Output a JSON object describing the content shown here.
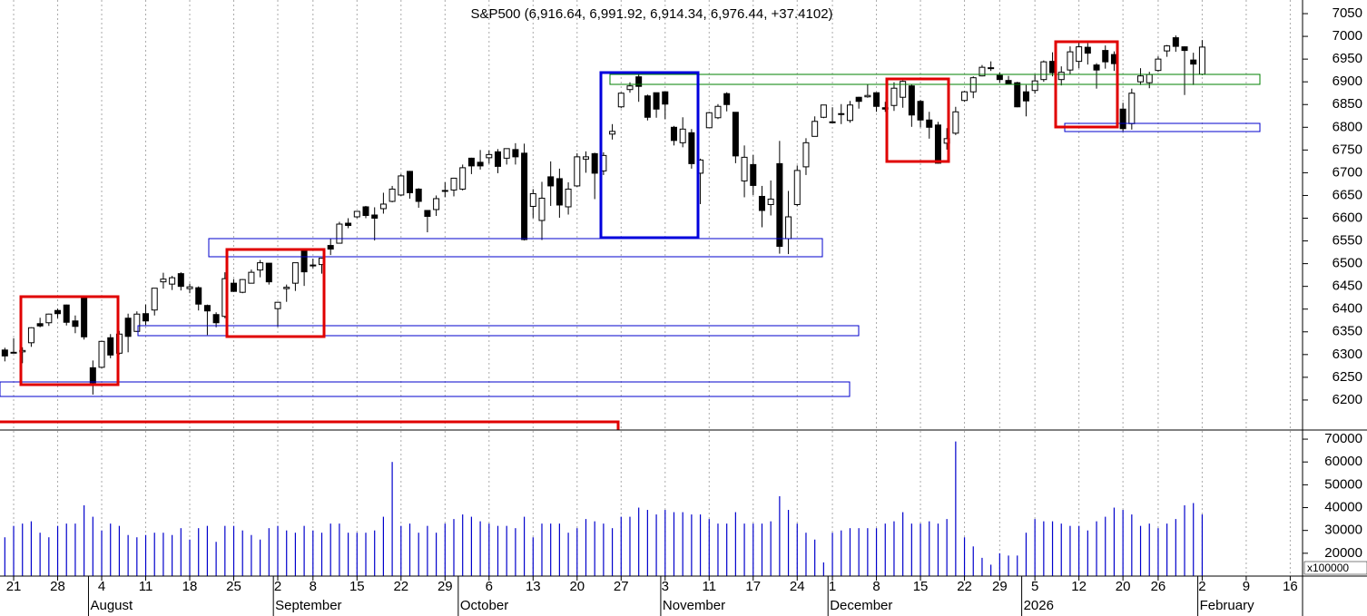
{
  "chart_data": {
    "type": "candlestick",
    "title": "S&P500 (6,916.64, 6,991.92, 6,914.34, 6,976.44, +37.4102)",
    "volume_unit_label": "x100000",
    "xlim": [
      -0.55,
      147.4
    ],
    "xticks": [
      {
        "value": 1,
        "label": "21"
      },
      {
        "value": 6,
        "label": "28"
      },
      {
        "value": 11,
        "label": "4"
      },
      {
        "value": 16,
        "label": "11"
      },
      {
        "value": 21,
        "label": "18"
      },
      {
        "value": 26,
        "label": "25"
      },
      {
        "value": 31,
        "label": "2"
      },
      {
        "value": 35,
        "label": "8"
      },
      {
        "value": 40,
        "label": "15"
      },
      {
        "value": 45,
        "label": "22"
      },
      {
        "value": 50,
        "label": "29"
      },
      {
        "value": 55,
        "label": "6"
      },
      {
        "value": 60,
        "label": "13"
      },
      {
        "value": 65,
        "label": "20"
      },
      {
        "value": 70,
        "label": "27"
      },
      {
        "value": 75,
        "label": "3"
      },
      {
        "value": 80,
        "label": "11"
      },
      {
        "value": 85,
        "label": "17"
      },
      {
        "value": 90,
        "label": "24"
      },
      {
        "value": 94,
        "label": "1"
      },
      {
        "value": 99,
        "label": "8"
      },
      {
        "value": 104,
        "label": "15"
      },
      {
        "value": 109,
        "label": "22"
      },
      {
        "value": 113,
        "label": "29"
      },
      {
        "value": 117,
        "label": "5"
      },
      {
        "value": 122,
        "label": "12"
      },
      {
        "value": 127,
        "label": "20"
      },
      {
        "value": 131,
        "label": "26"
      },
      {
        "value": 136,
        "label": "2"
      },
      {
        "value": 141,
        "label": "9"
      },
      {
        "value": 146,
        "label": "16"
      }
    ],
    "months": [
      {
        "value": 10,
        "label": "August"
      },
      {
        "value": 31,
        "label": "September"
      },
      {
        "value": 52,
        "label": "October"
      },
      {
        "value": 75,
        "label": "November"
      },
      {
        "value": 94,
        "label": "December"
      },
      {
        "value": 116,
        "label": "2026"
      },
      {
        "value": 136,
        "label": "February"
      }
    ],
    "ylim": [
      6134,
      7080
    ],
    "yticks": [
      6200,
      6250,
      6300,
      6350,
      6400,
      6450,
      6500,
      6550,
      6600,
      6650,
      6700,
      6750,
      6800,
      6850,
      6900,
      6950,
      7000,
      7050
    ],
    "y2lim": [
      10000,
      73600
    ],
    "y2ticks": [
      20000,
      30000,
      40000,
      50000,
      60000,
      70000
    ],
    "up_color": "#ffffff",
    "down_color": "#000000",
    "volume_color": "#0000cc",
    "ohlc": [
      [
        6310,
        6315,
        6285,
        6297
      ],
      [
        6305,
        6336,
        6303,
        6305
      ],
      [
        6306,
        6316,
        6281,
        6309
      ],
      [
        6326,
        6360,
        6317,
        6359
      ],
      [
        6368,
        6381,
        6360,
        6363
      ],
      [
        6370,
        6390,
        6363,
        6389
      ],
      [
        6397,
        6401,
        6380,
        6390
      ],
      [
        6409,
        6410,
        6364,
        6371
      ],
      [
        6374,
        6386,
        6347,
        6362
      ],
      [
        6428,
        6428,
        6333,
        6339
      ],
      [
        6271,
        6287,
        6212,
        6238
      ],
      [
        6272,
        6330,
        6270,
        6329
      ],
      [
        6337,
        6345,
        6292,
        6299
      ],
      [
        6303,
        6352,
        6300,
        6345
      ],
      [
        6380,
        6390,
        6305,
        6340
      ],
      [
        6351,
        6395,
        6350,
        6389
      ],
      [
        6390,
        6410,
        6365,
        6374
      ],
      [
        6398,
        6446,
        6386,
        6446
      ],
      [
        6460,
        6480,
        6445,
        6466
      ],
      [
        6455,
        6473,
        6442,
        6469
      ],
      [
        6478,
        6481,
        6441,
        6450
      ],
      [
        6445,
        6456,
        6435,
        6449
      ],
      [
        6447,
        6450,
        6397,
        6411
      ],
      [
        6408,
        6410,
        6343,
        6396
      ],
      [
        6388,
        6393,
        6360,
        6370
      ],
      [
        6384,
        6481,
        6380,
        6467
      ],
      [
        6457,
        6466,
        6438,
        6439
      ],
      [
        6437,
        6466,
        6435,
        6465
      ],
      [
        6457,
        6487,
        6457,
        6481
      ],
      [
        6486,
        6508,
        6470,
        6502
      ],
      [
        6501,
        6501,
        6454,
        6460
      ],
      [
        6401,
        6416,
        6361,
        6415
      ],
      [
        6445,
        6454,
        6416,
        6448
      ],
      [
        6457,
        6502,
        6440,
        6502
      ],
      [
        6531,
        6533,
        6451,
        6482
      ],
      [
        6497,
        6511,
        6490,
        6495
      ],
      [
        6498,
        6513,
        6478,
        6512
      ],
      [
        6540,
        6555,
        6519,
        6532
      ],
      [
        6545,
        6592,
        6545,
        6587
      ],
      [
        6589,
        6600,
        6578,
        6584
      ],
      [
        6603,
        6616,
        6600,
        6615
      ],
      [
        6625,
        6627,
        6600,
        6606
      ],
      [
        6607,
        6624,
        6551,
        6600
      ],
      [
        6621,
        6656,
        6610,
        6631
      ],
      [
        6637,
        6671,
        6635,
        6664
      ],
      [
        6651,
        6697,
        6649,
        6693
      ],
      [
        6703,
        6704,
        6643,
        6656
      ],
      [
        6664,
        6666,
        6623,
        6637
      ],
      [
        6617,
        6618,
        6569,
        6604
      ],
      [
        6619,
        6650,
        6605,
        6643
      ],
      [
        6661,
        6679,
        6646,
        6661
      ],
      [
        6662,
        6689,
        6648,
        6688
      ],
      [
        6664,
        6718,
        6661,
        6711
      ],
      [
        6732,
        6733,
        6697,
        6715
      ],
      [
        6723,
        6750,
        6707,
        6715
      ],
      [
        6733,
        6749,
        6720,
        6740
      ],
      [
        6746,
        6752,
        6699,
        6714
      ],
      [
        6732,
        6753,
        6718,
        6753
      ],
      [
        6751,
        6765,
        6718,
        6735
      ],
      [
        6743,
        6764,
        6551,
        6553
      ],
      [
        6626,
        6664,
        6600,
        6654
      ],
      [
        6595,
        6680,
        6552,
        6644
      ],
      [
        6691,
        6725,
        6627,
        6671
      ],
      [
        6687,
        6709,
        6601,
        6629
      ],
      [
        6625,
        6679,
        6608,
        6664
      ],
      [
        6671,
        6743,
        6669,
        6735
      ],
      [
        6730,
        6747,
        6700,
        6735
      ],
      [
        6742,
        6744,
        6642,
        6699
      ],
      [
        6704,
        6745,
        6695,
        6738
      ],
      [
        6785,
        6807,
        6773,
        6791
      ],
      [
        6845,
        6877,
        6842,
        6875
      ],
      [
        6883,
        6899,
        6876,
        6891
      ],
      [
        6911,
        6920,
        6856,
        6890
      ],
      [
        6869,
        6872,
        6815,
        6822
      ],
      [
        6876,
        6876,
        6821,
        6840
      ],
      [
        6878,
        6878,
        6818,
        6851
      ],
      [
        6800,
        6803,
        6760,
        6771
      ],
      [
        6766,
        6822,
        6756,
        6796
      ],
      [
        6788,
        6796,
        6709,
        6720
      ],
      [
        6699,
        6731,
        6631,
        6728
      ],
      [
        6799,
        6834,
        6799,
        6832
      ],
      [
        6821,
        6851,
        6818,
        6846
      ],
      [
        6874,
        6877,
        6835,
        6850
      ],
      [
        6833,
        6833,
        6721,
        6737
      ],
      [
        6682,
        6760,
        6646,
        6734
      ],
      [
        6718,
        6739,
        6651,
        6672
      ],
      [
        6648,
        6671,
        6580,
        6617
      ],
      [
        6630,
        6683,
        6606,
        6642
      ],
      [
        6720,
        6770,
        6522,
        6538
      ],
      [
        6555,
        6660,
        6521,
        6603
      ],
      [
        6630,
        6716,
        6626,
        6705
      ],
      [
        6713,
        6776,
        6695,
        6766
      ],
      [
        6780,
        6824,
        6780,
        6813
      ],
      [
        6822,
        6849,
        6820,
        6849
      ],
      [
        6812,
        6844,
        6810,
        6812
      ],
      [
        6830,
        6851,
        6807,
        6829
      ],
      [
        6815,
        6858,
        6810,
        6849
      ],
      [
        6866,
        6867,
        6841,
        6857
      ],
      [
        6867,
        6895,
        6865,
        6870
      ],
      [
        6876,
        6877,
        6834,
        6846
      ],
      [
        6843,
        6856,
        6834,
        6840
      ],
      [
        6848,
        6899,
        6836,
        6886
      ],
      [
        6866,
        6903,
        6843,
        6901
      ],
      [
        6891,
        6894,
        6801,
        6827
      ],
      [
        6857,
        6860,
        6800,
        6816
      ],
      [
        6816,
        6834,
        6775,
        6800
      ],
      [
        6805,
        6812,
        6720,
        6721
      ],
      [
        6765,
        6798,
        6751,
        6775
      ],
      [
        6787,
        6845,
        6783,
        6834
      ],
      [
        6859,
        6880,
        6856,
        6878
      ],
      [
        6878,
        6912,
        6864,
        6909
      ],
      [
        6913,
        6937,
        6912,
        6932
      ],
      [
        6931,
        6945,
        6924,
        6930
      ],
      [
        6914,
        6921,
        6898,
        6905
      ],
      [
        6903,
        6913,
        6897,
        6896
      ],
      [
        6898,
        6900,
        6844,
        6845
      ],
      [
        6878,
        6893,
        6824,
        6858
      ],
      [
        6881,
        6916,
        6874,
        6902
      ],
      [
        6905,
        6947,
        6900,
        6944
      ],
      [
        6945,
        6965,
        6912,
        6920
      ],
      [
        6905,
        6934,
        6892,
        6921
      ],
      [
        6926,
        6978,
        6916,
        6966
      ],
      [
        6945,
        6986,
        6930,
        6977
      ],
      [
        6976,
        6985,
        6938,
        6963
      ],
      [
        6937,
        6941,
        6885,
        6926
      ],
      [
        6969,
        6980,
        6929,
        6944
      ],
      [
        6960,
        6967,
        6924,
        6940
      ],
      [
        6840,
        6854,
        6790,
        6797
      ],
      [
        6808,
        6885,
        6795,
        6875
      ],
      [
        6900,
        6930,
        6893,
        6913
      ],
      [
        6898,
        6922,
        6886,
        6916
      ],
      [
        6925,
        6956,
        6922,
        6950
      ],
      [
        6968,
        6981,
        6955,
        6979
      ],
      [
        6997,
        7002,
        6966,
        6978
      ],
      [
        6977,
        6978,
        6871,
        6969
      ],
      [
        6948,
        6964,
        6893,
        6939
      ],
      [
        6916.64,
        6991.92,
        6914.34,
        6976.44
      ]
    ],
    "volume": [
      27000,
      32000,
      33000,
      34000,
      29000,
      27000,
      32000,
      33000,
      33000,
      41000,
      36000,
      30000,
      33000,
      32000,
      28000,
      27000,
      28000,
      29000,
      29000,
      28000,
      31000,
      26000,
      31000,
      32000,
      25000,
      32000,
      32000,
      30000,
      28000,
      26000,
      31000,
      32000,
      30000,
      29000,
      32000,
      30000,
      29000,
      33000,
      33000,
      29000,
      29000,
      29000,
      30000,
      36000,
      60000,
      32000,
      33000,
      29000,
      32000,
      29000,
      33000,
      35000,
      37000,
      36000,
      34000,
      33000,
      32000,
      32000,
      31000,
      36000,
      27000,
      33000,
      33000,
      33000,
      29000,
      31000,
      35000,
      34000,
      33000,
      31000,
      36000,
      36000,
      40000,
      39000,
      37000,
      39000,
      38000,
      38000,
      37000,
      37000,
      35000,
      33000,
      33000,
      38000,
      33000,
      33000,
      33000,
      34000,
      45000,
      39000,
      33000,
      29000,
      26000,
      16000,
      29000,
      30000,
      31000,
      31000,
      31000,
      31000,
      33000,
      34000,
      38000,
      33000,
      33000,
      34000,
      33000,
      35000,
      69000,
      27000,
      23000,
      18000,
      15000,
      20000,
      19000,
      19000,
      29000,
      35000,
      34000,
      34000,
      33000,
      32000,
      32000,
      30000,
      34000,
      36000,
      40000,
      39000,
      37000,
      32000,
      33000,
      31000,
      33000,
      35000,
      41000,
      42000,
      37000
    ]
  }
}
